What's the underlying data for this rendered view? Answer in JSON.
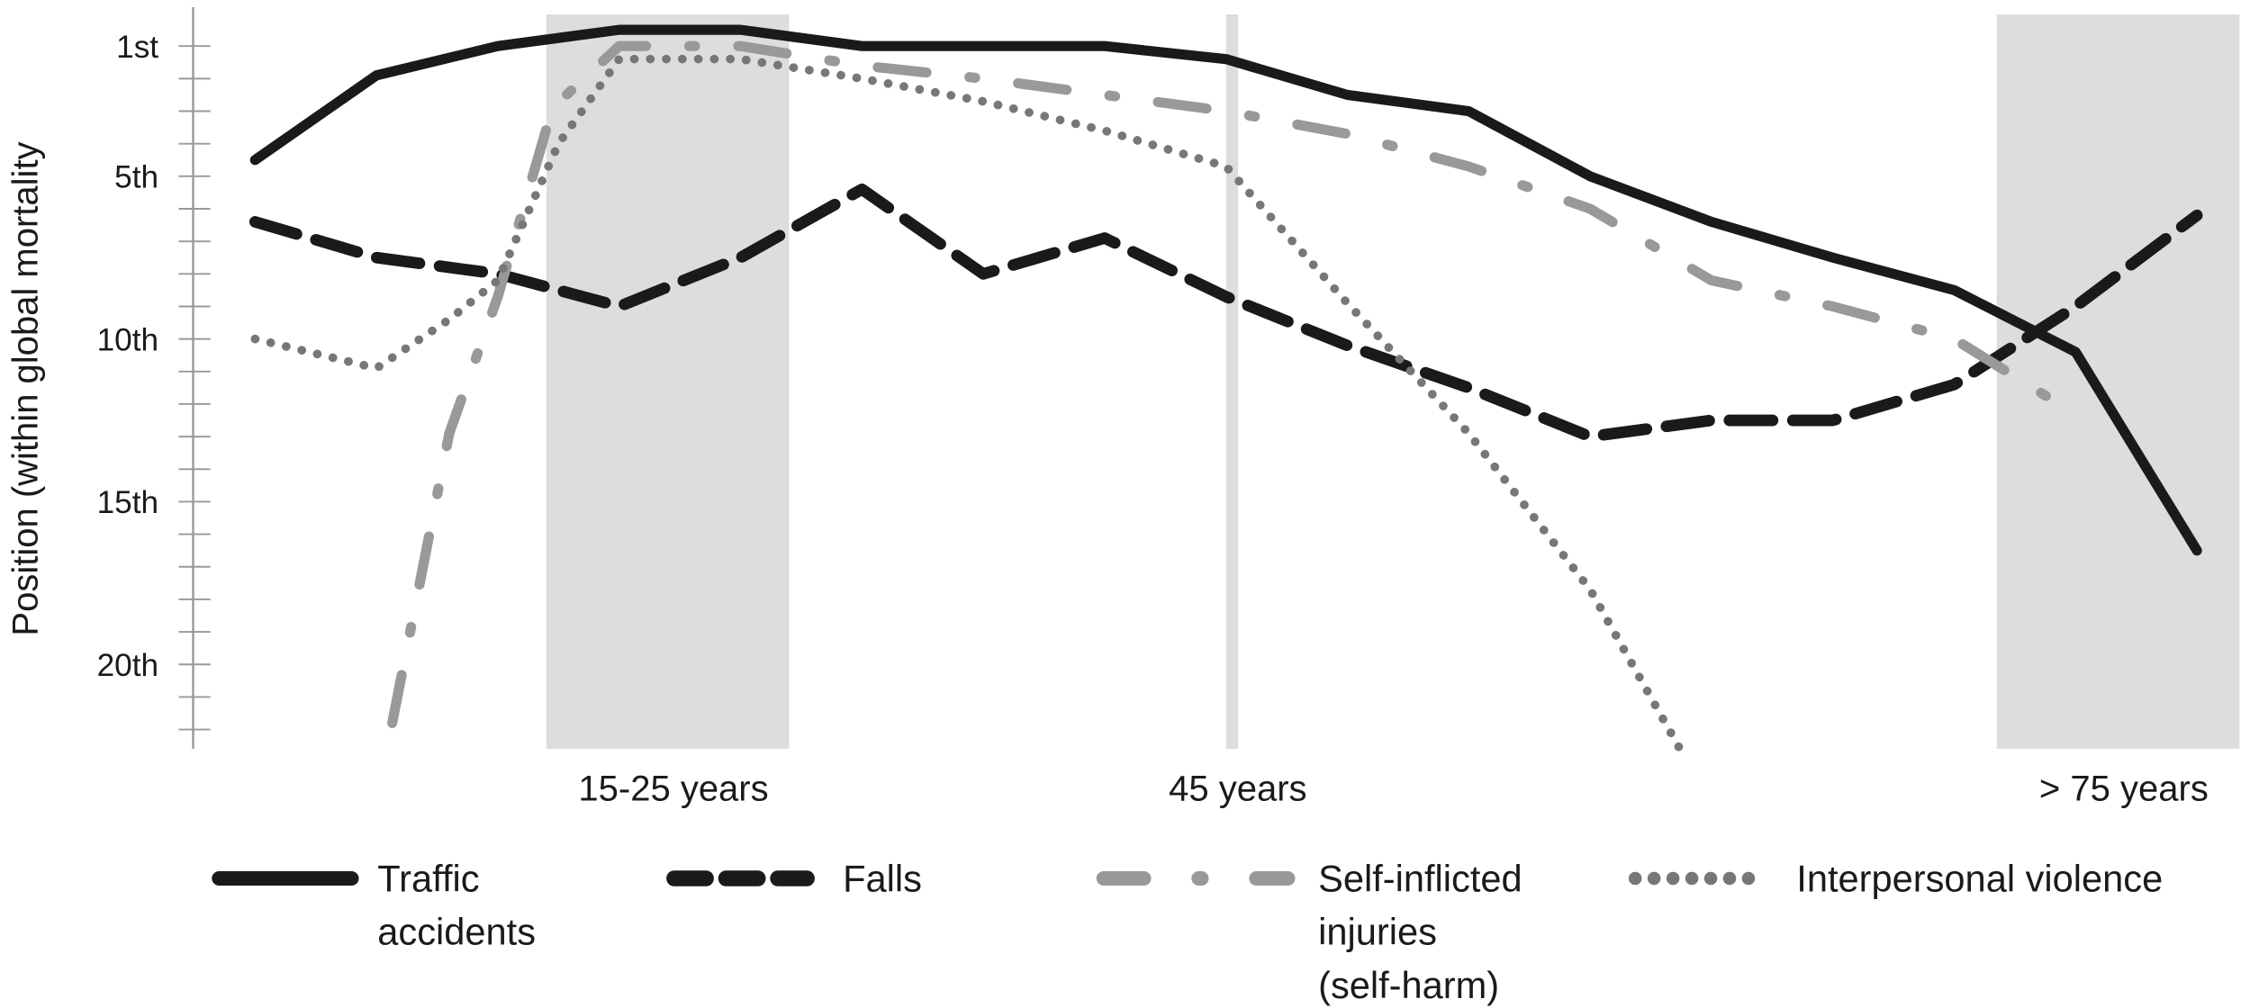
{
  "chart_data": {
    "type": "line",
    "title": "",
    "xlabel": "",
    "ylabel": "Position (within global mortality",
    "y_reversed": true,
    "ylim": [
      0,
      22.5
    ],
    "xlim": [
      0,
      16
    ],
    "grid": false,
    "legend_position": "bottom",
    "y_ticks": [
      {
        "value": 1,
        "label": "1st"
      },
      {
        "value": 5,
        "label": "5th"
      },
      {
        "value": 10,
        "label": "10th"
      },
      {
        "value": 15,
        "label": "15th"
      },
      {
        "value": 20,
        "label": "20th"
      }
    ],
    "x_markers": [
      {
        "label": "15-25 years",
        "band": [
          2.4,
          4.4
        ],
        "kind": "band"
      },
      {
        "label": "45 years",
        "band": [
          8.0,
          8.1
        ],
        "kind": "line"
      },
      {
        "label": "> 75 years",
        "band": [
          14.35,
          16.35
        ],
        "kind": "band"
      }
    ],
    "band_color": "#dcdddf",
    "series": [
      {
        "name": "Traffic accidents",
        "style": "solid",
        "color": "#1a1a1a",
        "x": [
          0,
          1,
          2,
          3,
          4,
          5,
          6,
          7,
          8,
          9,
          10,
          11,
          12,
          13,
          14,
          15,
          16
        ],
        "y": [
          4.5,
          1.9,
          1.0,
          0.5,
          0.5,
          1.0,
          1.0,
          1.0,
          1.4,
          2.5,
          3.0,
          5.0,
          6.4,
          7.5,
          8.5,
          10.4,
          16.5
        ]
      },
      {
        "name": "Falls",
        "style": "dashed",
        "color": "#1a1a1a",
        "x": [
          0,
          1,
          2,
          3,
          4,
          5,
          6,
          7,
          8,
          9,
          10,
          11,
          12,
          13,
          14,
          15,
          16
        ],
        "y": [
          6.4,
          7.5,
          8.0,
          9.0,
          7.5,
          5.4,
          8.0,
          6.9,
          8.7,
          10.2,
          11.5,
          13.0,
          12.5,
          12.5,
          11.4,
          9.0,
          6.2
        ]
      },
      {
        "name": "Self-inflicted injuries (self-harm)",
        "style": "dashdot",
        "color": "#999999",
        "x": [
          1.13,
          1.6,
          2.0,
          2.45,
          3,
          4,
          5,
          6,
          7,
          8,
          9,
          10,
          11,
          12,
          13,
          14,
          14.95
        ],
        "y": [
          21.8,
          12.9,
          8.7,
          2.9,
          1.0,
          1.0,
          1.6,
          2.0,
          2.5,
          3.0,
          3.7,
          4.7,
          6.0,
          8.2,
          9.0,
          10.0,
          12.2
        ]
      },
      {
        "name": "Interpersonal violence",
        "style": "dotted",
        "color": "#777777",
        "x": [
          0,
          1,
          1.6,
          2,
          2.5,
          3,
          4,
          5,
          6,
          7,
          8,
          9,
          10,
          11,
          11.74
        ],
        "y": [
          10.0,
          10.9,
          9.4,
          8.2,
          4.0,
          1.4,
          1.4,
          2.0,
          2.7,
          3.6,
          4.7,
          8.9,
          12.9,
          17.7,
          22.6
        ]
      }
    ]
  },
  "legend": [
    {
      "label_lines": [
        "Traffic",
        "accidents"
      ]
    },
    {
      "label_lines": [
        "Falls"
      ]
    },
    {
      "label_lines": [
        "Self-inflicted",
        "injuries",
        "(self-harm)"
      ]
    },
    {
      "label_lines": [
        "Interpersonal violence"
      ]
    }
  ]
}
